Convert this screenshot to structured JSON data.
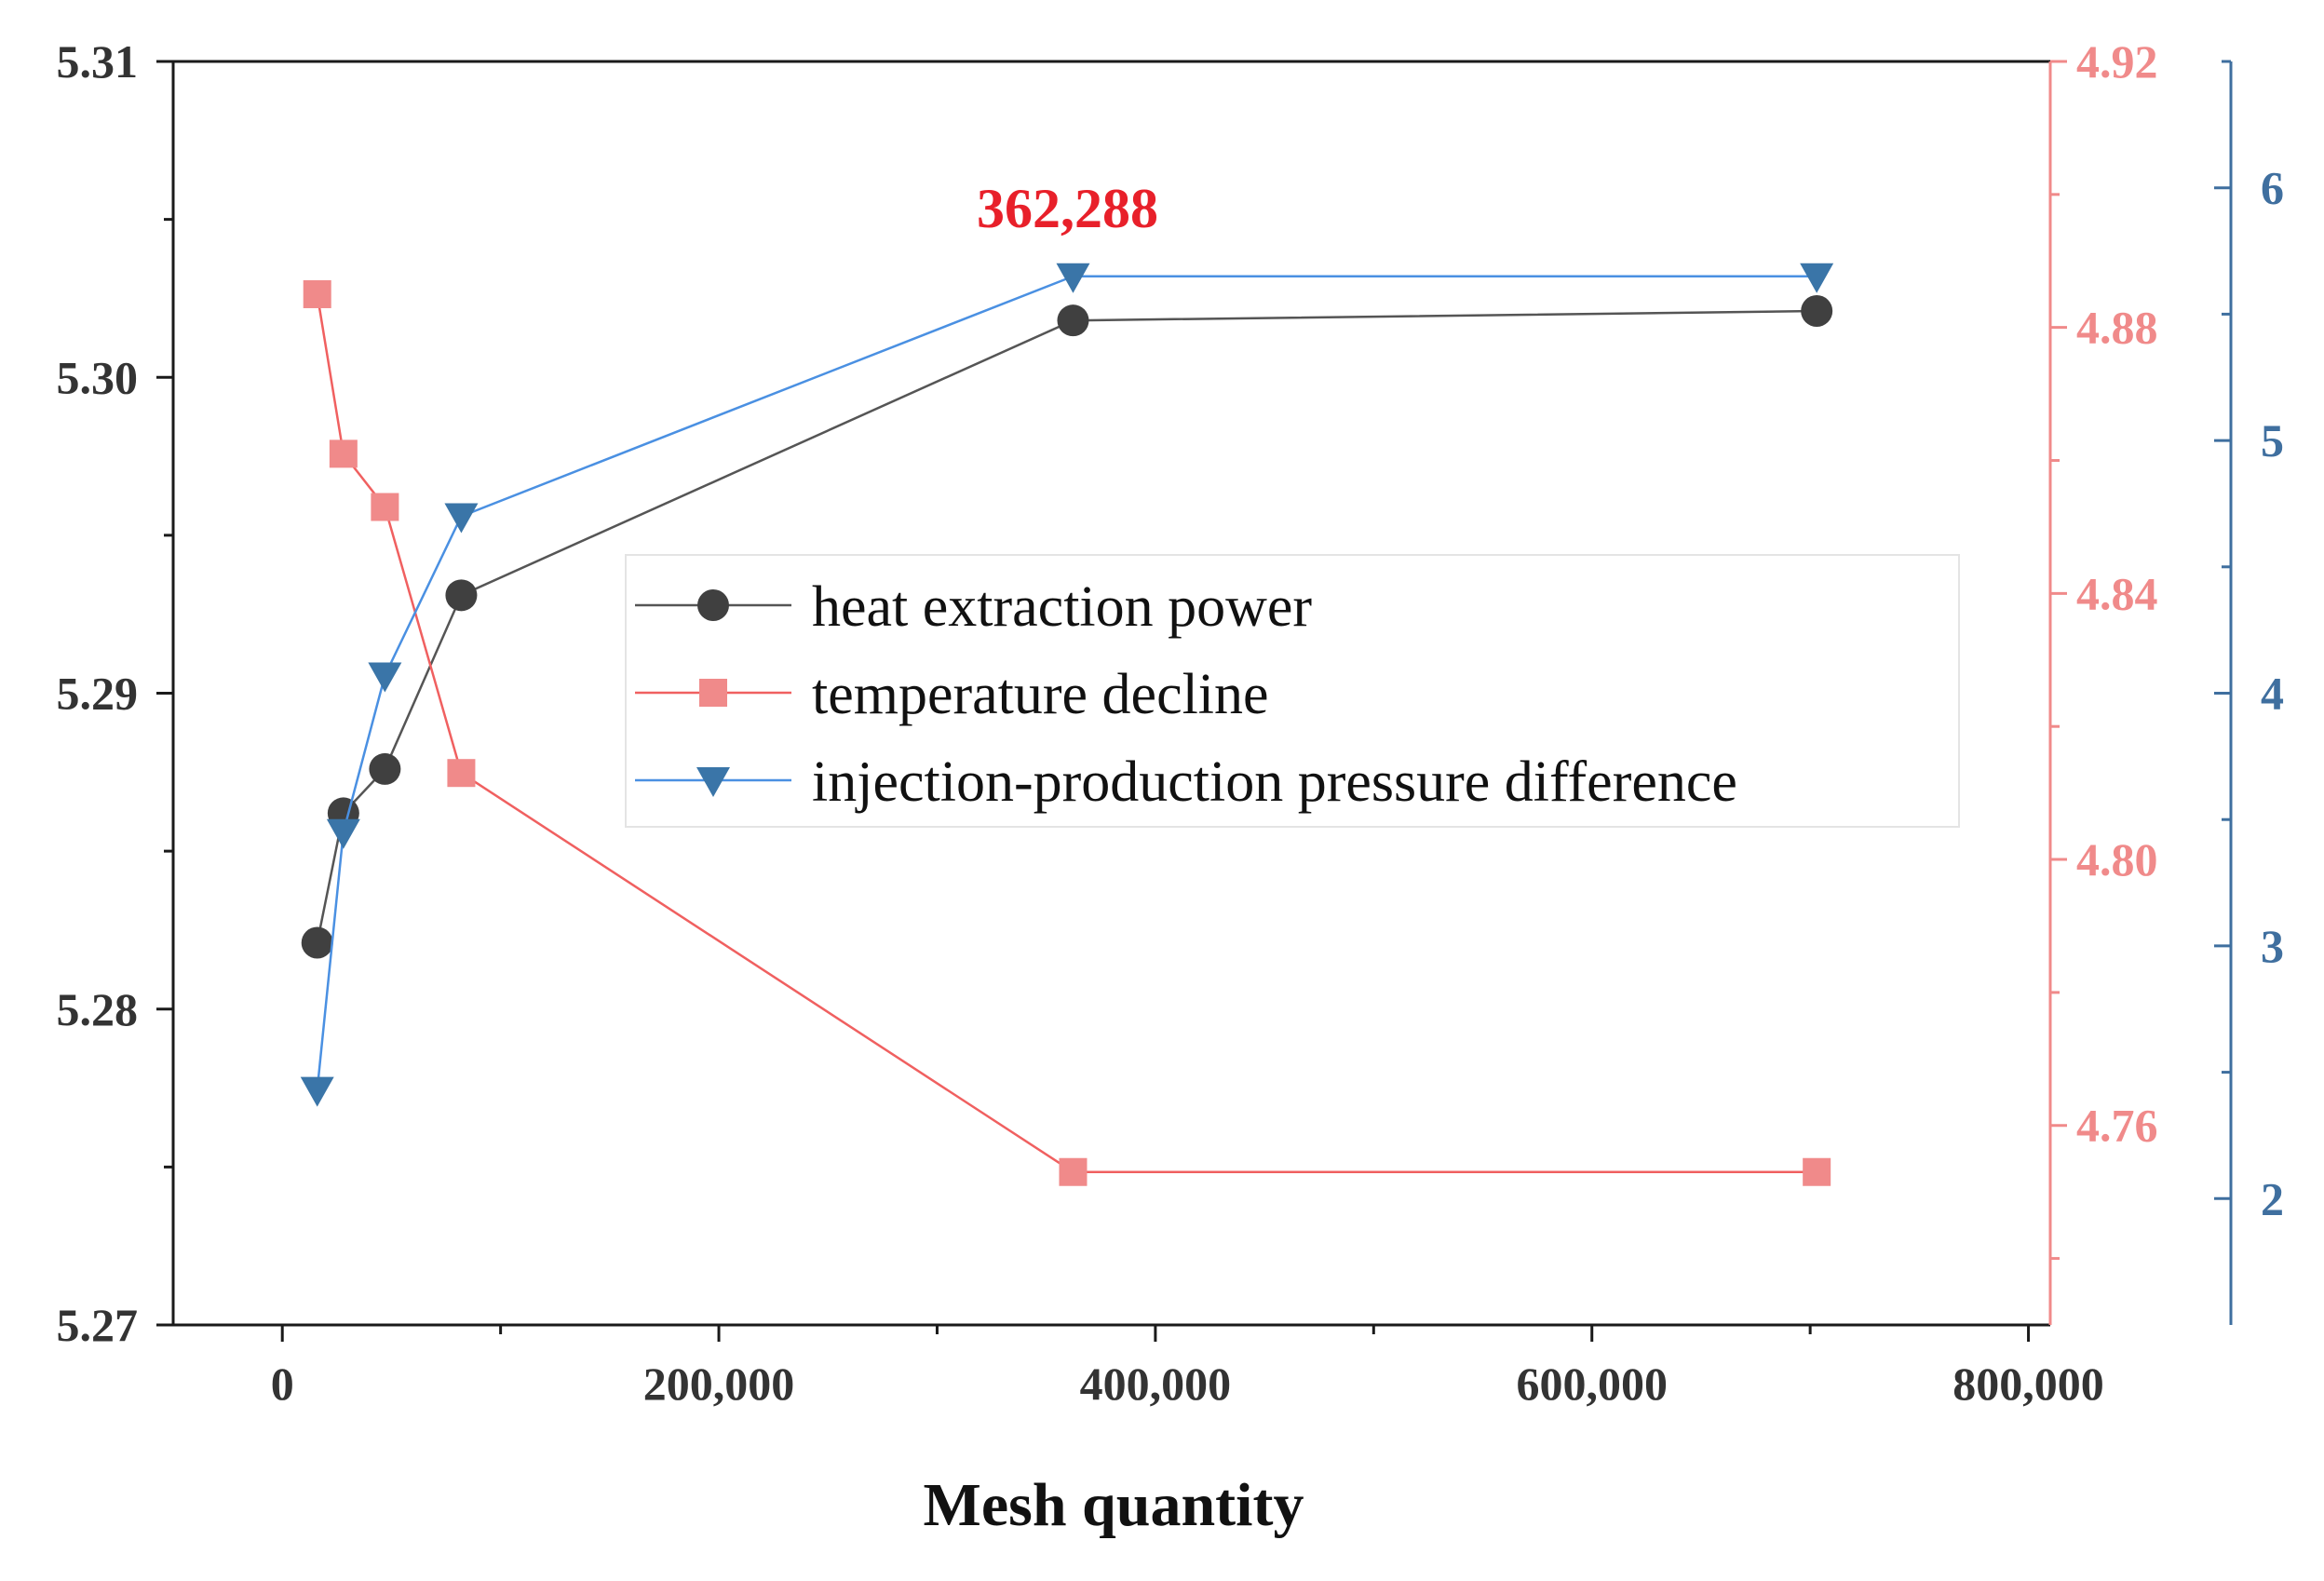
{
  "chart_data": {
    "type": "line",
    "title": "",
    "xlabel": "Mesh quantity",
    "ylabel": "",
    "x": [
      16000,
      28000,
      47000,
      82000,
      362288,
      703000
    ],
    "xlim": [
      -50000,
      810000
    ],
    "xticks": [
      0,
      200000,
      400000,
      600000,
      800000
    ],
    "xtick_labels": [
      "0",
      "200,000",
      "400,000",
      "600,000",
      "800,000"
    ],
    "axes": {
      "left": {
        "range": [
          5.27,
          5.31
        ],
        "ticks": [
          5.27,
          5.28,
          5.29,
          5.3,
          5.31
        ],
        "tick_labels": [
          "5.27",
          "5.28",
          "5.29",
          "5.30",
          "5.31"
        ],
        "color": "#333333"
      },
      "right1": {
        "range": [
          4.73,
          4.92
        ],
        "ticks": [
          4.76,
          4.8,
          4.84,
          4.88,
          4.92
        ],
        "tick_labels": [
          "4.76",
          "4.80",
          "4.84",
          "4.88",
          "4.92"
        ],
        "color": "#f08a8a"
      },
      "right2": {
        "range": [
          1.5,
          6.5
        ],
        "ticks": [
          2,
          3,
          4,
          5,
          6
        ],
        "tick_labels": [
          "2",
          "3",
          "4",
          "5",
          "6"
        ],
        "color": "#3f6f9f"
      }
    },
    "series": [
      {
        "name": "heat extraction power",
        "axis": "left",
        "marker": "circle",
        "line_color": "#555555",
        "marker_color": "#404040",
        "values": [
          5.2821,
          5.2862,
          5.2876,
          5.2931,
          5.3018,
          5.3021
        ]
      },
      {
        "name": "temperature decline",
        "axis": "right1",
        "marker": "square",
        "line_color": "#f06060",
        "marker_color": "#f08a8a",
        "values": [
          4.885,
          4.861,
          4.853,
          4.813,
          4.753,
          4.753
        ]
      },
      {
        "name": "injection-production pressure difference",
        "axis": "right2",
        "marker": "triangle-down",
        "line_color": "#4a90e2",
        "marker_color": "#3a75a8",
        "values": [
          2.43,
          3.45,
          4.07,
          4.7,
          5.65,
          5.65
        ]
      }
    ],
    "annotations": [
      {
        "text": "362,288",
        "x": 362288,
        "color": "#e8202a"
      }
    ],
    "legend_position": "center-right",
    "grid": false
  }
}
